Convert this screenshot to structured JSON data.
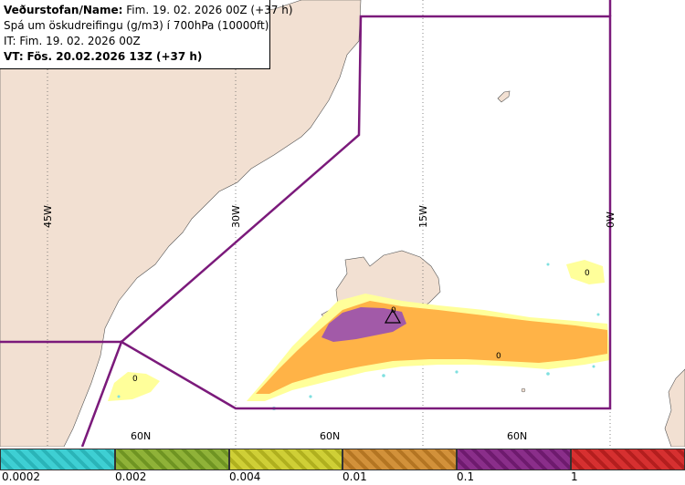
{
  "info": {
    "line1_label": "Veðurstofan/Name:",
    "line1_value": "Fim. 19. 02. 2026 00Z (+37 h)",
    "line2": "Spá um öskudreifingu (g/m3) í 700hPa (10000ft)",
    "line3": "IT: Fim. 19. 02. 2026 00Z",
    "line4_label": "VT:",
    "line4_value": "Fös. 20.02.2026 13Z (+37 h)"
  },
  "map": {
    "longitude_labels": [
      "45W",
      "30W",
      "15W",
      "0W"
    ],
    "latitude_labels": [
      "60N",
      "60N",
      "60N"
    ],
    "contour_labels": [
      "0",
      "0",
      "0",
      "0"
    ],
    "colors": {
      "land": "#f2e0d2",
      "sea": "#ffffff",
      "boundary": "#7b1a7b",
      "yellow": "#ffff9a",
      "orange": "#ffb347",
      "purple": "#a25aa8"
    }
  },
  "scale": {
    "segments": [
      {
        "name": "cyan",
        "color": "#3ecfd3"
      },
      {
        "name": "olive",
        "color": "#8fb238"
      },
      {
        "name": "yellow",
        "color": "#cfcf36"
      },
      {
        "name": "orange",
        "color": "#d2913a"
      },
      {
        "name": "purple",
        "color": "#8a2e8a"
      },
      {
        "name": "red",
        "color": "#d63030"
      }
    ],
    "ticks": [
      "0.0002",
      "0.002",
      "0.004",
      "0.01",
      "0.1",
      "1"
    ]
  }
}
